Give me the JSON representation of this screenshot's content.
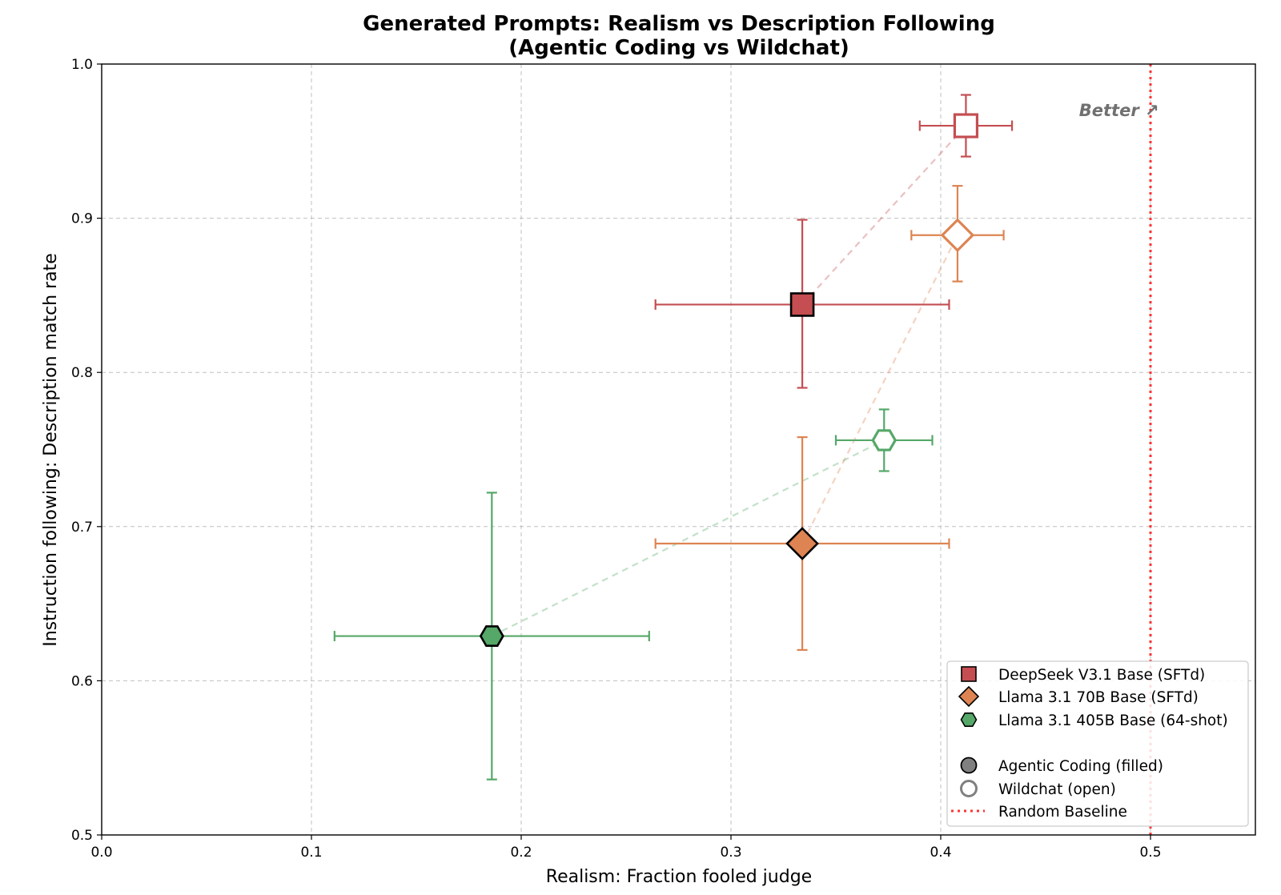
{
  "chart_data": {
    "type": "scatter",
    "title": "Generated Prompts: Realism vs Description Following",
    "subtitle": "(Agentic Coding vs Wildchat)",
    "xlabel": "Realism: Fraction fooled judge",
    "ylabel": "Instruction following: Description match rate",
    "xlim": [
      0.0,
      0.55
    ],
    "ylim": [
      0.5,
      1.0
    ],
    "x_ticks": [
      "0.0",
      "0.1",
      "0.2",
      "0.3",
      "0.4",
      "0.5"
    ],
    "y_ticks": [
      "0.5",
      "0.6",
      "0.7",
      "0.8",
      "0.9",
      "1.0"
    ],
    "grid": true,
    "baseline": {
      "x": 0.5,
      "label": "Random Baseline",
      "color": "#ff3333"
    },
    "annotation": {
      "text": "Better ↗",
      "x": 0.485,
      "y": 0.97
    },
    "legend_position": "lower-right",
    "series": [
      {
        "name": "DeepSeek V3.1 Base (SFTd)",
        "marker": "square",
        "color": "#c44e52",
        "agentic": {
          "x": 0.334,
          "y": 0.844,
          "xerr": [
            0.264,
            0.404
          ],
          "yerr": [
            0.79,
            0.899
          ]
        },
        "wildchat": {
          "x": 0.412,
          "y": 0.96,
          "xerr": [
            0.39,
            0.434
          ],
          "yerr": [
            0.94,
            0.98
          ]
        }
      },
      {
        "name": "Llama 3.1 70B Base (SFTd)",
        "marker": "diamond",
        "color": "#dd8452",
        "agentic": {
          "x": 0.334,
          "y": 0.689,
          "xerr": [
            0.264,
            0.404
          ],
          "yerr": [
            0.62,
            0.758
          ]
        },
        "wildchat": {
          "x": 0.408,
          "y": 0.889,
          "xerr": [
            0.386,
            0.43
          ],
          "yerr": [
            0.859,
            0.921
          ]
        }
      },
      {
        "name": "Llama 3.1 405B Base (64-shot)",
        "marker": "hexagon",
        "color": "#55a868",
        "agentic": {
          "x": 0.186,
          "y": 0.629,
          "xerr": [
            0.111,
            0.261
          ],
          "yerr": [
            0.536,
            0.722
          ]
        },
        "wildchat": {
          "x": 0.373,
          "y": 0.756,
          "xerr": [
            0.35,
            0.396
          ],
          "yerr": [
            0.736,
            0.776
          ]
        }
      }
    ],
    "legend_extra": [
      "Agentic Coding (filled)",
      "Wildchat (open)",
      "Random Baseline"
    ]
  }
}
